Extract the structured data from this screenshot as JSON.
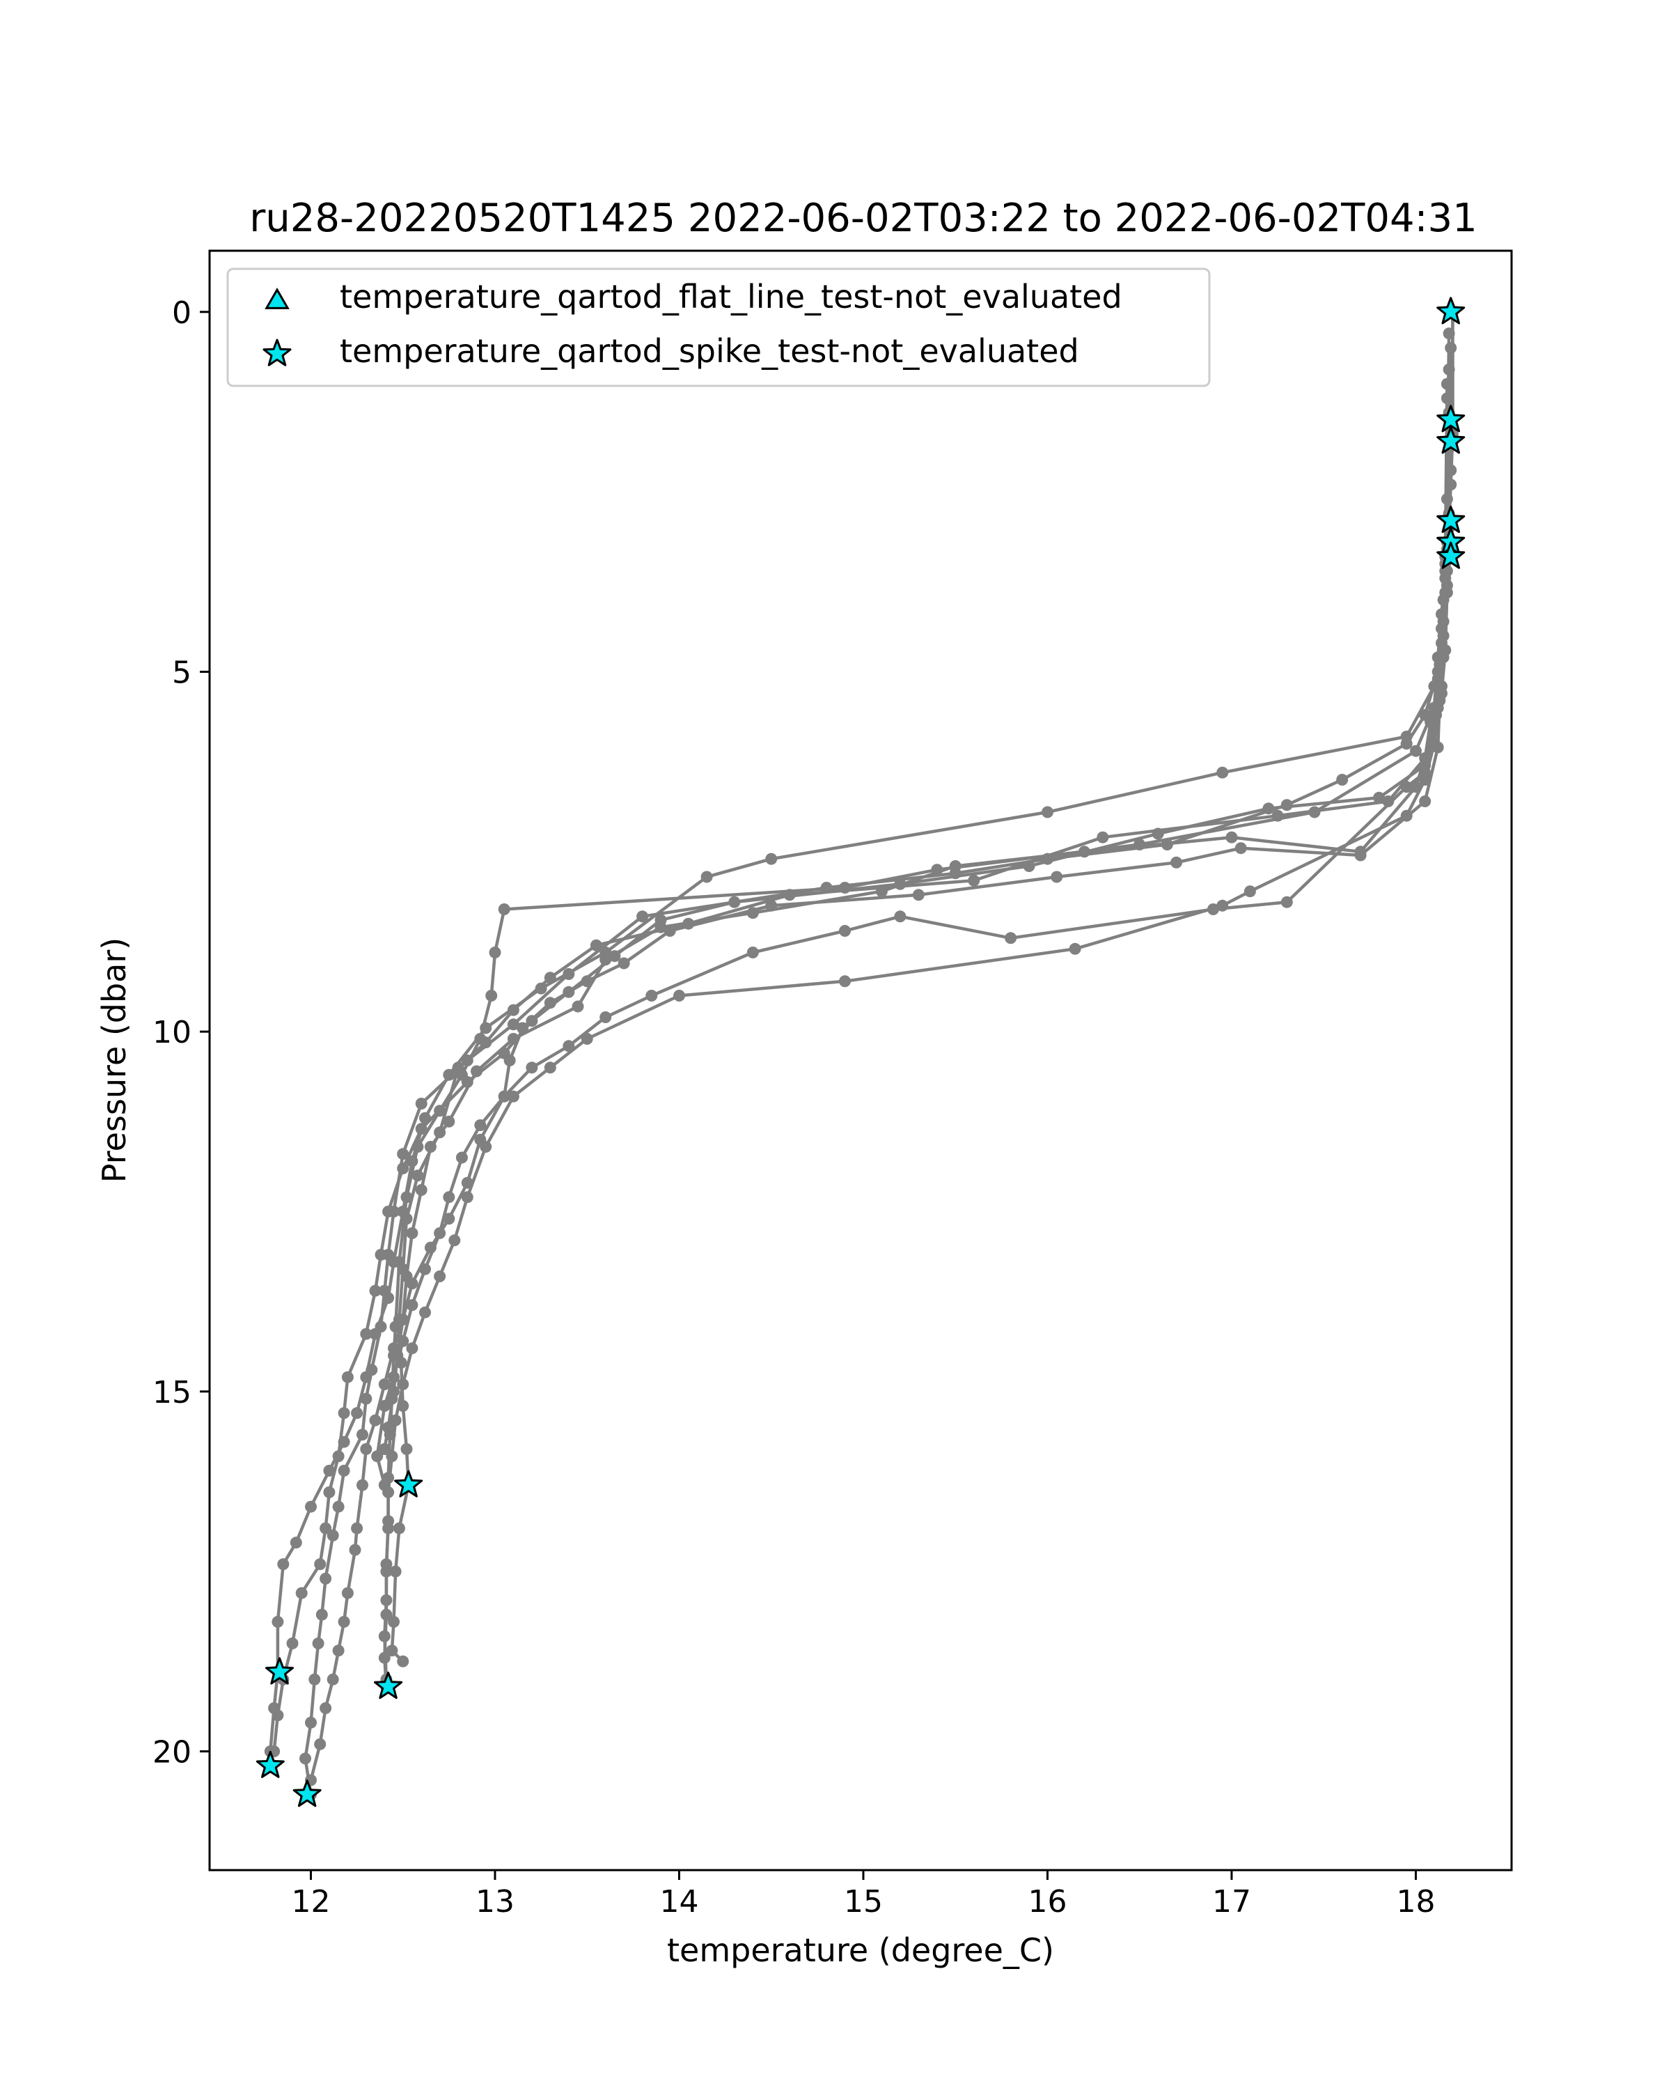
{
  "chart_data": {
    "type": "line",
    "title": "ru28-20220520T1425 2022-06-02T03:22 to 2022-06-02T04:31",
    "xlabel": "temperature (degree_C)",
    "ylabel": "Pressure (dbar)",
    "xlim": [
      11.45,
      18.52
    ],
    "ylim": [
      21.65,
      -0.85
    ],
    "y_inverted": true,
    "x_ticks": [
      12,
      13,
      14,
      15,
      16,
      17,
      18
    ],
    "y_ticks": [
      0,
      5,
      10,
      15,
      20
    ],
    "grid": false,
    "legend_position": "top-left",
    "colors": {
      "profile_line": "#808080",
      "marker_fill": "#00e5ee",
      "marker_edge": "#000000"
    },
    "legend": [
      {
        "label": "temperature_qartod_flat_line_test-not_evaluated",
        "marker": "triangle"
      },
      {
        "label": "temperature_qartod_spike_test-not_evaluated",
        "marker": "star"
      }
    ],
    "series": [
      {
        "points": [
          [
            18.2,
            0.0
          ],
          [
            18.2,
            1.6
          ],
          [
            18.2,
            1.8
          ],
          [
            18.19,
            2.2
          ],
          [
            18.18,
            2.9
          ],
          [
            18.17,
            3.3
          ],
          [
            18.16,
            3.7
          ],
          [
            18.15,
            4.3
          ],
          [
            18.12,
            5.0
          ],
          [
            18.05,
            5.6
          ],
          [
            17.95,
            6.0
          ],
          [
            17.6,
            6.5
          ],
          [
            17.3,
            6.85
          ],
          [
            16.65,
            7.4
          ],
          [
            16.0,
            7.6
          ],
          [
            15.5,
            7.8
          ],
          [
            14.8,
            8.0
          ],
          [
            13.8,
            8.4
          ],
          [
            13.4,
            9.2
          ],
          [
            13.1,
            9.9
          ],
          [
            12.85,
            10.4
          ],
          [
            12.6,
            11.0
          ],
          [
            12.5,
            11.7
          ],
          [
            12.45,
            12.5
          ],
          [
            12.42,
            13.1
          ],
          [
            12.4,
            13.6
          ],
          [
            12.38,
            14.1
          ],
          [
            12.33,
            14.7
          ],
          [
            12.3,
            15.1
          ],
          [
            12.28,
            15.6
          ],
          [
            12.18,
            16.1
          ],
          [
            12.15,
            16.6
          ],
          [
            12.12,
            17.0
          ],
          [
            12.08,
            17.6
          ],
          [
            12.06,
            18.1
          ],
          [
            12.04,
            18.5
          ],
          [
            12.02,
            19.0
          ],
          [
            12.0,
            19.6
          ],
          [
            11.97,
            20.1
          ],
          [
            12.0,
            20.6
          ]
        ]
      },
      {
        "points": [
          [
            18.2,
            0.0
          ],
          [
            18.2,
            1.7
          ],
          [
            18.19,
            2.4
          ],
          [
            18.18,
            3.0
          ],
          [
            18.17,
            3.6
          ],
          [
            18.15,
            4.5
          ],
          [
            18.1,
            5.2
          ],
          [
            17.95,
            5.9
          ],
          [
            16.95,
            6.4
          ],
          [
            16.0,
            6.95
          ],
          [
            14.5,
            7.6
          ],
          [
            14.15,
            7.85
          ],
          [
            13.6,
            8.9
          ],
          [
            13.25,
            9.4
          ],
          [
            12.95,
            9.95
          ],
          [
            12.75,
            10.6
          ],
          [
            12.62,
            11.2
          ],
          [
            12.55,
            11.8
          ],
          [
            12.5,
            12.5
          ],
          [
            12.45,
            13.2
          ],
          [
            12.42,
            13.7
          ],
          [
            12.35,
            14.2
          ],
          [
            12.3,
            14.8
          ],
          [
            12.25,
            15.3
          ],
          [
            12.18,
            15.7
          ],
          [
            12.1,
            16.1
          ],
          [
            12.0,
            16.6
          ],
          [
            11.92,
            17.1
          ],
          [
            11.85,
            17.4
          ],
          [
            11.82,
            18.2
          ],
          [
            11.82,
            18.9
          ],
          [
            11.8,
            19.4
          ],
          [
            11.78,
            20.0
          ],
          [
            11.78,
            20.2
          ]
        ]
      },
      {
        "points": [
          [
            18.18,
            0.3
          ],
          [
            18.17,
            2.6
          ],
          [
            18.16,
            3.5
          ],
          [
            18.14,
            4.2
          ],
          [
            18.12,
            4.8
          ],
          [
            18.1,
            5.5
          ],
          [
            18.0,
            6.1
          ],
          [
            17.45,
            6.95
          ],
          [
            16.5,
            7.4
          ],
          [
            15.4,
            7.75
          ],
          [
            14.9,
            8.0
          ],
          [
            13.05,
            8.3
          ],
          [
            13.0,
            8.9
          ],
          [
            12.98,
            9.5
          ],
          [
            12.92,
            10.1
          ],
          [
            12.82,
            10.6
          ],
          [
            12.7,
            11.1
          ],
          [
            12.58,
            11.6
          ],
          [
            12.52,
            12.3
          ],
          [
            12.48,
            13.2
          ],
          [
            12.46,
            14.1
          ],
          [
            12.45,
            14.5
          ],
          [
            12.44,
            15.1
          ],
          [
            12.43,
            15.6
          ],
          [
            12.42,
            16.2
          ],
          [
            12.42,
            16.8
          ],
          [
            12.41,
            17.5
          ],
          [
            12.41,
            18.1
          ],
          [
            12.4,
            18.7
          ],
          [
            12.41,
            19.1
          ]
        ]
      },
      {
        "points": [
          [
            18.19,
            0.5
          ],
          [
            18.18,
            2.8
          ],
          [
            18.17,
            3.9
          ],
          [
            18.16,
            4.7
          ],
          [
            18.14,
            5.3
          ],
          [
            18.08,
            5.7
          ],
          [
            18.05,
            6.2
          ],
          [
            17.85,
            6.8
          ],
          [
            17.25,
            7.0
          ],
          [
            16.3,
            7.3
          ],
          [
            15.6,
            7.9
          ],
          [
            14.6,
            8.1
          ],
          [
            14.05,
            8.5
          ],
          [
            13.55,
            8.8
          ],
          [
            13.3,
            9.25
          ],
          [
            13.1,
            9.7
          ],
          [
            12.95,
            10.15
          ],
          [
            12.8,
            10.5
          ],
          [
            12.7,
            11.4
          ],
          [
            12.58,
            12.0
          ],
          [
            12.52,
            12.6
          ],
          [
            12.5,
            13.3
          ],
          [
            12.48,
            14.0
          ],
          [
            12.49,
            14.6
          ],
          [
            12.5,
            15.2
          ],
          [
            12.52,
            15.8
          ],
          [
            12.53,
            16.3
          ],
          [
            12.48,
            16.9
          ],
          [
            12.46,
            17.5
          ],
          [
            12.45,
            18.2
          ],
          [
            12.44,
            18.6
          ],
          [
            12.5,
            18.75
          ]
        ]
      },
      {
        "points": [
          [
            18.18,
            0.8
          ],
          [
            18.17,
            3.2
          ],
          [
            18.15,
            4.0
          ],
          [
            18.13,
            4.9
          ],
          [
            18.11,
            5.6
          ],
          [
            18.05,
            6.3
          ],
          [
            17.8,
            6.75
          ],
          [
            17.2,
            6.9
          ],
          [
            16.6,
            7.25
          ],
          [
            15.9,
            7.7
          ],
          [
            15.2,
            7.95
          ],
          [
            14.3,
            8.2
          ],
          [
            13.9,
            8.45
          ],
          [
            13.65,
            8.95
          ],
          [
            13.4,
            9.45
          ],
          [
            13.2,
            9.85
          ],
          [
            13.05,
            10.3
          ],
          [
            12.85,
            10.7
          ],
          [
            12.6,
            11.35
          ],
          [
            12.5,
            11.9
          ],
          [
            12.42,
            12.5
          ],
          [
            12.38,
            13.1
          ],
          [
            12.35,
            13.6
          ],
          [
            12.3,
            14.2
          ],
          [
            12.2,
            14.8
          ],
          [
            12.18,
            15.3
          ],
          [
            12.15,
            15.9
          ],
          [
            12.1,
            16.4
          ],
          [
            12.08,
            16.9
          ],
          [
            12.05,
            17.4
          ],
          [
            11.95,
            17.8
          ],
          [
            11.9,
            18.5
          ],
          [
            11.85,
            19.0
          ],
          [
            11.82,
            19.5
          ],
          [
            11.8,
            20.0
          ]
        ]
      },
      {
        "points": [
          [
            18.17,
            1.0
          ],
          [
            18.16,
            3.4
          ],
          [
            18.14,
            4.4
          ],
          [
            18.12,
            5.1
          ],
          [
            18.1,
            5.8
          ],
          [
            18.0,
            6.6
          ],
          [
            17.7,
            7.5
          ],
          [
            17.0,
            7.3
          ],
          [
            16.2,
            7.5
          ],
          [
            15.5,
            7.7
          ],
          [
            15.1,
            8.05
          ],
          [
            14.4,
            8.35
          ],
          [
            13.9,
            8.55
          ],
          [
            13.6,
            9.0
          ],
          [
            13.45,
            9.65
          ],
          [
            13.1,
            10.1
          ],
          [
            12.9,
            10.55
          ],
          [
            12.75,
            11.25
          ],
          [
            12.65,
            11.6
          ],
          [
            12.6,
            12.2
          ],
          [
            12.55,
            12.8
          ],
          [
            12.52,
            13.4
          ],
          [
            12.5,
            14.0
          ],
          [
            12.47,
            14.5
          ],
          [
            12.45,
            15.0
          ],
          [
            12.42,
            15.5
          ],
          [
            12.4,
            15.8
          ]
        ]
      },
      {
        "points": [
          [
            18.17,
            1.2
          ],
          [
            18.16,
            3.6
          ],
          [
            18.14,
            4.6
          ],
          [
            18.13,
            5.4
          ],
          [
            18.12,
            6.05
          ],
          [
            18.05,
            6.8
          ],
          [
            17.7,
            7.55
          ],
          [
            17.05,
            7.45
          ],
          [
            16.7,
            7.65
          ],
          [
            16.05,
            7.85
          ],
          [
            15.3,
            8.1
          ],
          [
            14.5,
            8.25
          ],
          [
            13.95,
            8.6
          ],
          [
            13.7,
            9.05
          ],
          [
            13.5,
            9.3
          ],
          [
            13.3,
            9.6
          ],
          [
            13.15,
            9.95
          ],
          [
            13.08,
            10.4
          ],
          [
            13.05,
            10.9
          ],
          [
            12.92,
            11.5
          ],
          [
            12.85,
            12.1
          ],
          [
            12.75,
            12.6
          ],
          [
            12.65,
            13.0
          ],
          [
            12.55,
            13.5
          ],
          [
            12.5,
            14.0
          ],
          [
            12.45,
            14.4
          ],
          [
            12.4,
            14.9
          ],
          [
            12.35,
            15.4
          ],
          [
            12.3,
            15.8
          ],
          [
            12.28,
            16.3
          ],
          [
            12.25,
            16.9
          ],
          [
            12.24,
            17.2
          ],
          [
            12.2,
            17.8
          ],
          [
            12.18,
            18.2
          ],
          [
            12.15,
            18.6
          ],
          [
            12.12,
            19.0
          ],
          [
            12.08,
            19.4
          ],
          [
            12.05,
            19.9
          ],
          [
            12.0,
            20.4
          ],
          [
            11.98,
            20.6
          ]
        ]
      },
      {
        "points": [
          [
            18.18,
            1.4
          ],
          [
            18.17,
            3.8
          ],
          [
            18.15,
            4.8
          ],
          [
            18.12,
            5.5
          ],
          [
            18.05,
            6.4
          ],
          [
            17.95,
            6.6
          ],
          [
            17.3,
            8.2
          ],
          [
            16.9,
            8.3
          ],
          [
            15.8,
            8.7
          ],
          [
            15.2,
            8.4
          ],
          [
            14.9,
            8.6
          ],
          [
            14.4,
            8.9
          ],
          [
            13.85,
            9.5
          ],
          [
            13.6,
            9.8
          ],
          [
            13.4,
            10.2
          ],
          [
            13.2,
            10.5
          ],
          [
            13.05,
            10.9
          ],
          [
            12.92,
            11.3
          ],
          [
            12.82,
            11.75
          ],
          [
            12.75,
            12.3
          ],
          [
            12.7,
            12.8
          ],
          [
            12.62,
            13.3
          ],
          [
            12.55,
            13.8
          ],
          [
            12.5,
            14.3
          ],
          [
            12.45,
            14.8
          ],
          [
            12.4,
            15.2
          ],
          [
            12.36,
            15.9
          ],
          [
            12.4,
            16.3
          ]
        ]
      },
      {
        "points": [
          [
            18.18,
            1.5
          ],
          [
            18.16,
            3.9
          ],
          [
            18.14,
            5.2
          ],
          [
            18.1,
            6.0
          ],
          [
            18.05,
            6.5
          ],
          [
            17.95,
            7.0
          ],
          [
            17.1,
            8.05
          ],
          [
            16.95,
            8.25
          ],
          [
            16.15,
            8.85
          ],
          [
            14.9,
            9.3
          ],
          [
            14.0,
            9.5
          ],
          [
            13.5,
            10.1
          ],
          [
            13.3,
            10.5
          ],
          [
            13.1,
            10.9
          ],
          [
            12.95,
            11.6
          ],
          [
            12.85,
            12.3
          ],
          [
            12.78,
            12.9
          ],
          [
            12.7,
            13.4
          ],
          [
            12.62,
            13.9
          ],
          [
            12.55,
            14.4
          ],
          [
            12.5,
            14.9
          ],
          [
            12.46,
            15.4
          ],
          [
            12.44,
            15.9
          ],
          [
            12.42,
            16.4
          ],
          [
            12.42,
            16.9
          ],
          [
            12.41,
            17.4
          ],
          [
            12.41,
            17.9
          ],
          [
            12.4,
            18.4
          ],
          [
            12.41,
            19.0
          ]
        ]
      }
    ],
    "flat_line_points": [],
    "spike_points": [
      [
        18.19,
        0.0
      ],
      [
        18.19,
        1.5
      ],
      [
        18.19,
        1.8
      ],
      [
        18.19,
        2.9
      ],
      [
        18.19,
        3.2
      ],
      [
        18.19,
        3.4
      ],
      [
        12.53,
        16.3
      ],
      [
        11.83,
        18.9
      ],
      [
        12.42,
        19.1
      ],
      [
        11.78,
        20.2
      ],
      [
        11.98,
        20.6
      ]
    ]
  }
}
